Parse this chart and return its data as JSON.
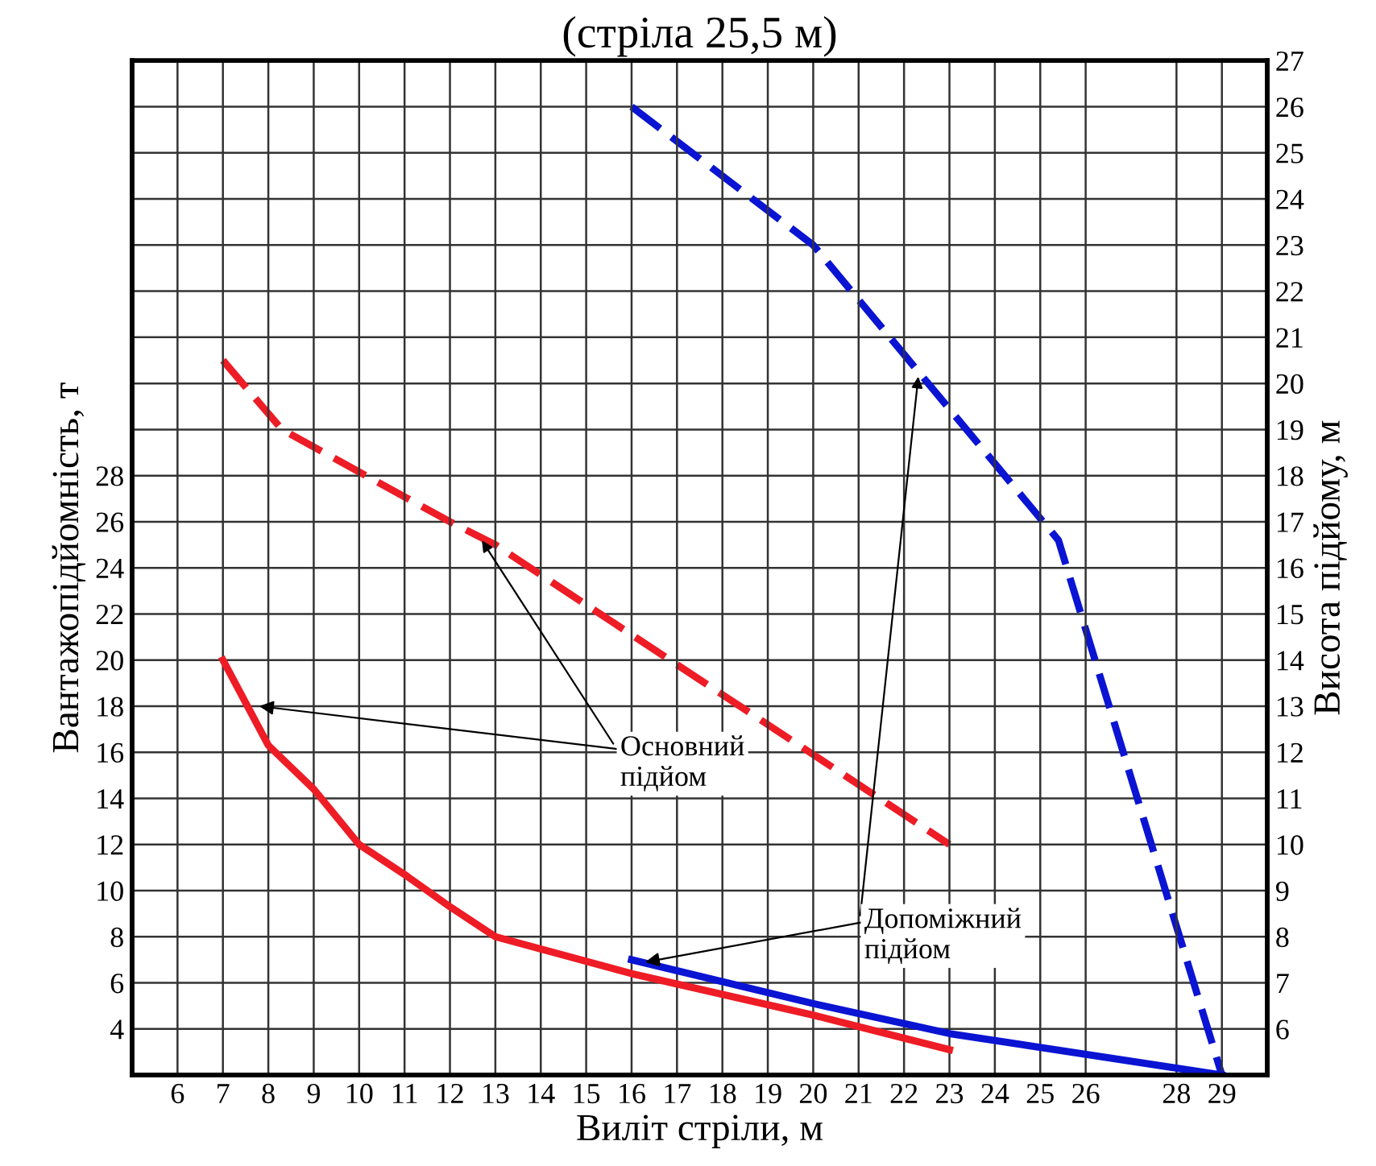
{
  "chart_data": {
    "type": "line",
    "title": "(стріла 25,5 м)",
    "xlabel": "Виліт стріли, м",
    "ylabel": "Вантажопідйомність, т",
    "y2label": "Висота підйому, м",
    "xlim": [
      5,
      30
    ],
    "xticks": [
      6,
      7,
      8,
      9,
      10,
      11,
      12,
      13,
      14,
      15,
      16,
      17,
      18,
      19,
      20,
      21,
      22,
      23,
      24,
      25,
      26,
      28,
      29
    ],
    "ylim": [
      2,
      46
    ],
    "yticks": [
      4,
      6,
      8,
      10,
      12,
      14,
      16,
      18,
      20,
      22,
      24,
      26,
      28
    ],
    "y2lim": [
      5,
      27
    ],
    "y2ticks": [
      6,
      7,
      8,
      9,
      10,
      11,
      12,
      13,
      14,
      15,
      16,
      17,
      18,
      19,
      20,
      21,
      22,
      23,
      24,
      25,
      26,
      27
    ],
    "grid": true,
    "legend": false,
    "marker": "none",
    "series": [
      {
        "color": "#ee1c25",
        "line_style": "solid",
        "x": [
          7,
          8,
          9,
          10,
          11,
          12,
          13,
          16,
          20,
          23
        ],
        "values": [
          20,
          16.3,
          14.4,
          12,
          10.7,
          9.3,
          8,
          6.4,
          4.6,
          3.1
        ]
      },
      {
        "color": "#ee1c25",
        "line_style": "dashed",
        "axis": "y2",
        "x": [
          7,
          8.3,
          12,
          13,
          23
        ],
        "values": [
          20.5,
          19,
          17,
          16.5,
          10
        ]
      },
      {
        "color": "#0a14d2",
        "line_style": "solid",
        "x": [
          16,
          20,
          23,
          29
        ],
        "values": [
          7,
          5.1,
          3.8,
          2
        ]
      },
      {
        "color": "#0a14d2",
        "line_style": "dashed",
        "axis": "y2",
        "x": [
          16,
          20,
          25.4,
          29
        ],
        "values": [
          26,
          23,
          16.6,
          5
        ]
      }
    ],
    "annotations": [
      {
        "text": "Основний\nпідйом",
        "x": 7.8,
        "y": 18
      },
      {
        "text": "Допоміжний\nпідйом",
        "x": 16.3,
        "y": 6.9
      }
    ]
  }
}
